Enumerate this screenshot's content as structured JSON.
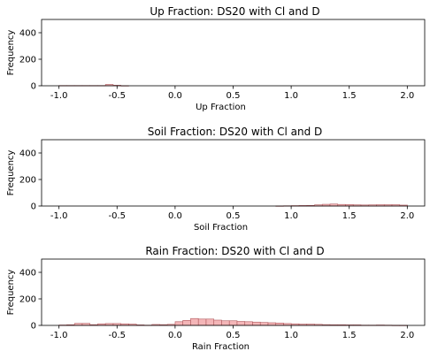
{
  "colors": {
    "bar_fill": "#f4b6b8",
    "bar_edge": "#b05a5e",
    "axis": "#000000"
  },
  "chart_data": [
    {
      "type": "bar",
      "title": "Up Fraction: DS20 with Cl and D",
      "xlabel": "Up Fraction",
      "ylabel": "Frequency",
      "xlim": [
        -1.15,
        2.15
      ],
      "ylim": [
        0,
        500
      ],
      "xticks": [
        "-1.0",
        "-0.5",
        "0.0",
        "0.5",
        "1.0",
        "1.5",
        "2.0"
      ],
      "yticks": [
        "0",
        "200",
        "400"
      ],
      "bin_start": -1.0,
      "bin_width": 0.0667,
      "values": [
        2,
        2,
        2,
        2,
        2,
        2,
        10,
        4,
        1,
        0,
        0,
        0,
        0,
        0,
        0,
        0,
        0,
        0,
        0,
        0,
        0,
        0,
        0,
        0,
        0,
        0,
        0,
        0,
        0,
        0,
        0,
        0,
        0,
        0,
        0,
        0,
        0,
        0,
        0,
        0,
        0,
        0,
        0,
        0,
        0
      ]
    },
    {
      "type": "bar",
      "title": "Soil Fraction: DS20 with Cl and D",
      "xlabel": "Soil Fraction",
      "ylabel": "Frequency",
      "xlim": [
        -1.15,
        2.15
      ],
      "ylim": [
        0,
        500
      ],
      "xticks": [
        "-1.0",
        "-0.5",
        "0.0",
        "0.5",
        "1.0",
        "1.5",
        "2.0"
      ],
      "yticks": [
        "0",
        "200",
        "400"
      ],
      "bin_start": -1.0,
      "bin_width": 0.0667,
      "values": [
        0,
        0,
        0,
        0,
        0,
        0,
        0,
        0,
        0,
        0,
        0,
        0,
        0,
        0,
        0,
        0,
        0,
        0,
        0,
        0,
        0,
        0,
        0,
        0,
        0,
        0,
        0,
        0,
        1,
        2,
        3,
        4,
        5,
        9,
        13,
        15,
        12,
        11,
        9,
        8,
        9,
        10,
        10,
        10,
        7
      ]
    },
    {
      "type": "bar",
      "title": "Rain Fraction: DS20 with Cl and D",
      "xlabel": "Rain Fraction",
      "ylabel": "Frequency",
      "xlim": [
        -1.15,
        2.15
      ],
      "ylim": [
        0,
        500
      ],
      "xticks": [
        "-1.0",
        "-0.5",
        "0.0",
        "0.5",
        "1.0",
        "1.5",
        "2.0"
      ],
      "yticks": [
        "0",
        "200",
        "400"
      ],
      "bin_start": -1.0,
      "bin_width": 0.0667,
      "values": [
        3,
        5,
        15,
        15,
        6,
        12,
        14,
        14,
        12,
        10,
        4,
        2,
        7,
        6,
        8,
        28,
        38,
        52,
        48,
        48,
        40,
        35,
        35,
        30,
        28,
        25,
        22,
        20,
        18,
        14,
        12,
        10,
        10,
        8,
        6,
        5,
        5,
        4,
        4,
        2,
        2,
        3,
        2,
        1,
        1
      ]
    }
  ]
}
